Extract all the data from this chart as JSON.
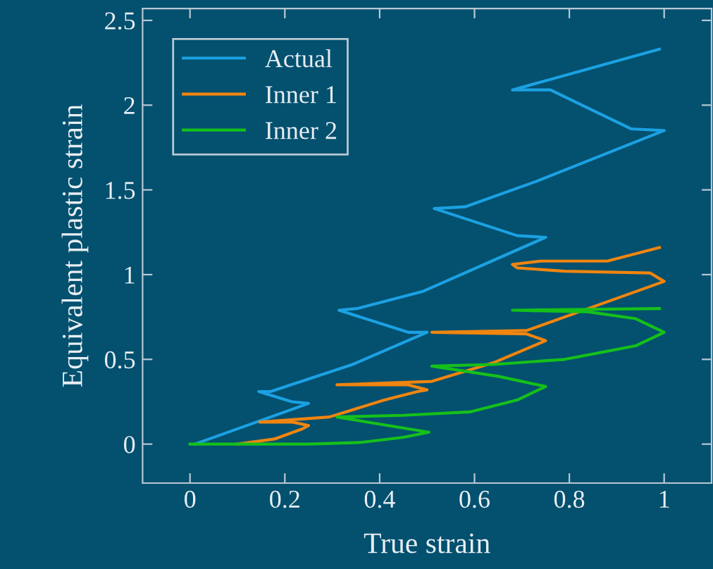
{
  "chart_data": {
    "type": "line",
    "xlabel": "True strain",
    "ylabel": "Equivalent plastic strain",
    "xlim": [
      -0.1,
      1.1
    ],
    "ylim": [
      -0.23,
      2.57
    ],
    "xticks": [
      0,
      0.2,
      0.4,
      0.6,
      0.8,
      1
    ],
    "yticks": [
      0,
      0.5,
      1,
      1.5,
      2,
      2.5
    ],
    "grid": false,
    "legend": "top left",
    "marker": "none",
    "line_style": "solid",
    "series": [
      {
        "name": "Actual",
        "color": "#1ba1e2",
        "x": [
          0.01,
          0.25,
          0.215,
          0.145,
          0.17,
          0.343,
          0.5,
          0.46,
          0.314,
          0.353,
          0.49,
          0.75,
          0.69,
          0.515,
          0.58,
          0.73,
          1.0,
          0.93,
          0.76,
          0.68,
          0.99
        ],
        "values": [
          0,
          0.24,
          0.25,
          0.31,
          0.31,
          0.47,
          0.66,
          0.66,
          0.79,
          0.8,
          0.9,
          1.22,
          1.23,
          1.39,
          1.4,
          1.55,
          1.85,
          1.86,
          2.09,
          2.09,
          2.33
        ]
      },
      {
        "name": "Inner 1",
        "color": "#f0850f",
        "x": [
          0.1,
          0.178,
          0.237,
          0.25,
          0.216,
          0.147,
          0.294,
          0.41,
          0.48,
          0.5,
          0.46,
          0.31,
          0.51,
          0.64,
          0.75,
          0.71,
          0.51,
          0.71,
          0.84,
          1.0,
          0.97,
          0.79,
          0.69,
          0.68,
          0.74,
          0.88,
          0.99
        ],
        "values": [
          0,
          0.03,
          0.09,
          0.11,
          0.13,
          0.13,
          0.16,
          0.26,
          0.31,
          0.32,
          0.35,
          0.35,
          0.37,
          0.48,
          0.61,
          0.65,
          0.66,
          0.67,
          0.8,
          0.96,
          1.01,
          1.02,
          1.04,
          1.06,
          1.08,
          1.08,
          1.16
        ]
      },
      {
        "name": "Inner 2",
        "color": "#15c01a",
        "x": [
          0,
          0.25,
          0.36,
          0.45,
          0.504,
          0.395,
          0.31,
          0.45,
          0.59,
          0.69,
          0.75,
          0.65,
          0.51,
          0.64,
          0.79,
          0.94,
          1.0,
          0.94,
          0.84,
          0.68,
          0.99
        ],
        "values": [
          0,
          0,
          0.01,
          0.04,
          0.07,
          0.12,
          0.16,
          0.17,
          0.19,
          0.26,
          0.34,
          0.4,
          0.46,
          0.47,
          0.5,
          0.58,
          0.66,
          0.74,
          0.78,
          0.79,
          0.8
        ]
      }
    ]
  }
}
